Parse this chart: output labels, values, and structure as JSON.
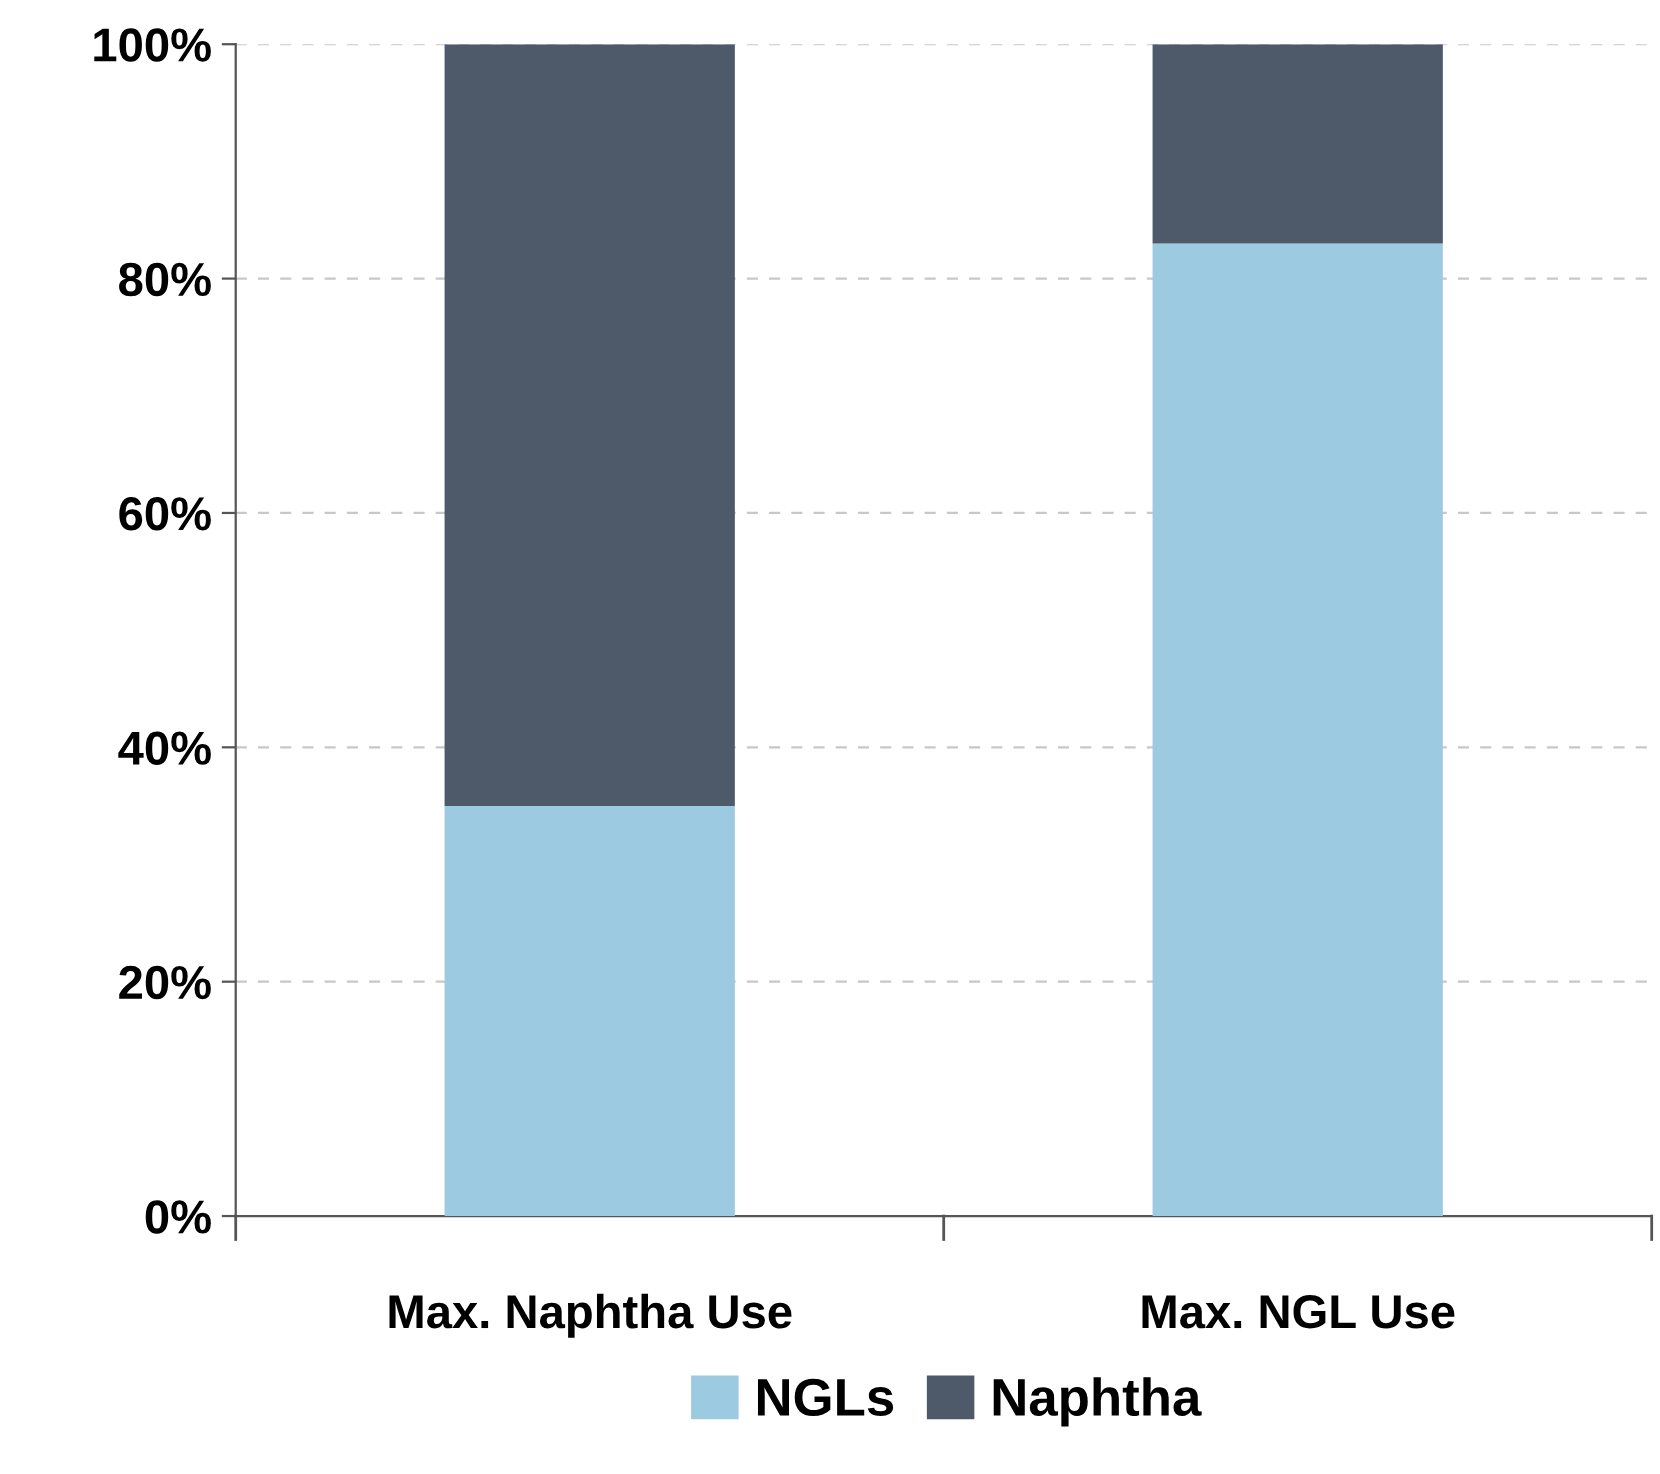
{
  "chart_data": {
    "type": "bar",
    "stacked": true,
    "categories": [
      "Max. Naphtha Use",
      "Max. NGL Use"
    ],
    "series": [
      {
        "name": "NGLs",
        "color": "#9ccae0",
        "values": [
          35,
          83
        ]
      },
      {
        "name": "Naphtha",
        "color": "#4e5a6a",
        "values": [
          65,
          17
        ]
      }
    ],
    "ylim": [
      0,
      100
    ],
    "yticks": [
      {
        "value": 0,
        "label": "0%"
      },
      {
        "value": 20,
        "label": "20%"
      },
      {
        "value": 40,
        "label": "40%"
      },
      {
        "value": 60,
        "label": "60%"
      },
      {
        "value": 80,
        "label": "80%"
      },
      {
        "value": 100,
        "label": "100%"
      }
    ],
    "grid": "y",
    "legend": "bottom"
  }
}
